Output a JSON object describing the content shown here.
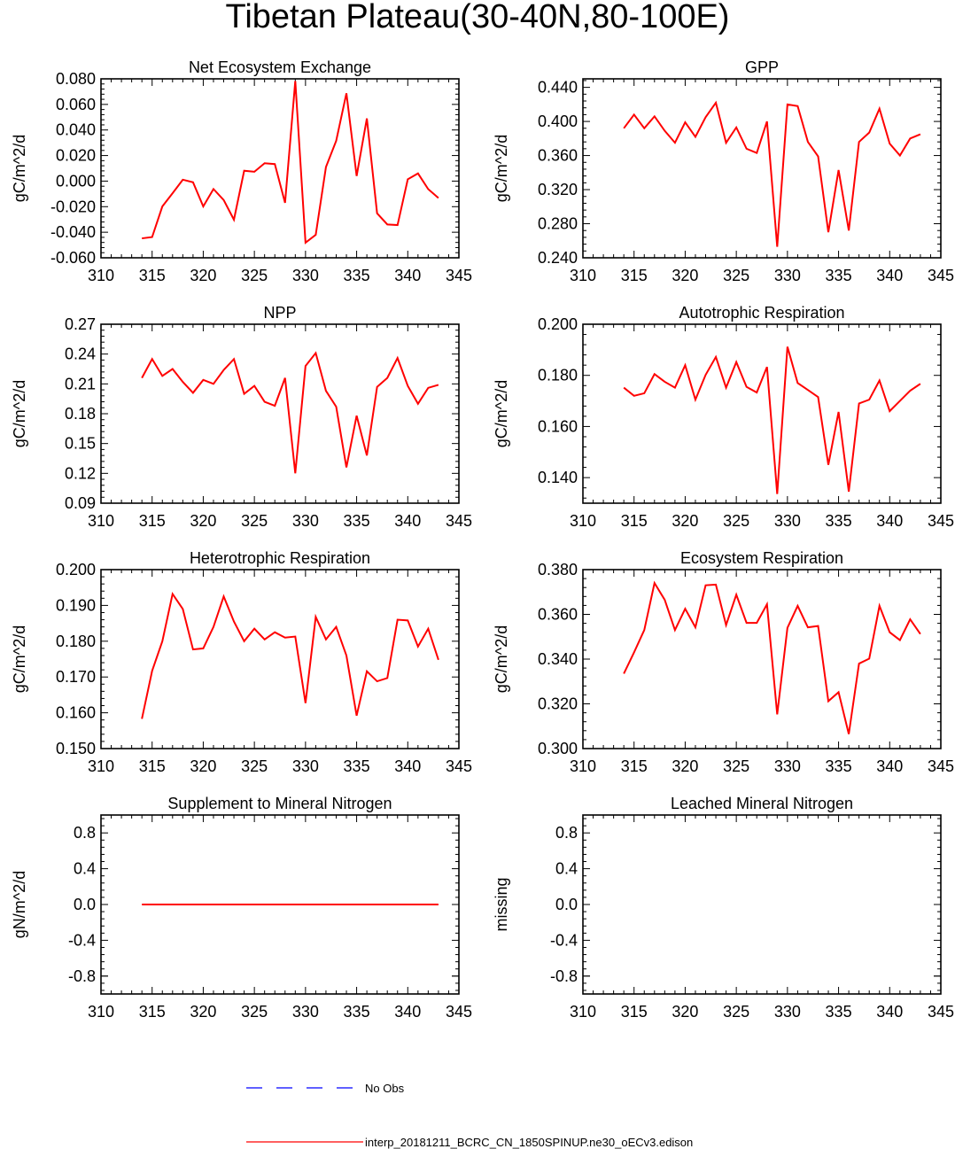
{
  "title": "Tibetan Plateau(30-40N,80-100E)",
  "colors": {
    "model": "#ff0000",
    "obs": "#0000ff",
    "axis": "#000000"
  },
  "legend": {
    "obs_label": "No Obs",
    "model_label": "interp_20181211_BCRC_CN_1850SPINUP.ne30_oECv3.edison"
  },
  "chart_data": [
    {
      "type": "line",
      "title": "Net Ecosystem Exchange",
      "ylabel": "gC/m^2/d",
      "xlim": [
        310,
        345
      ],
      "xticks": [
        310,
        315,
        320,
        325,
        330,
        335,
        340,
        345
      ],
      "ylim": [
        -0.06,
        0.08
      ],
      "yticks": [
        -0.06,
        -0.04,
        -0.02,
        0.0,
        0.02,
        0.04,
        0.06,
        0.08
      ],
      "ydec": 3,
      "x": [
        314,
        315,
        316,
        317,
        318,
        319,
        320,
        321,
        322,
        323,
        324,
        325,
        326,
        327,
        328,
        329,
        330,
        331,
        332,
        333,
        334,
        335,
        336,
        337,
        338,
        339,
        340,
        341,
        342,
        343
      ],
      "series": [
        {
          "name": "model",
          "values": [
            -0.0448,
            -0.0438,
            -0.0198,
            -0.0095,
            0.0011,
            -0.0009,
            -0.0198,
            -0.0062,
            -0.0148,
            -0.0302,
            0.0081,
            0.0073,
            0.014,
            0.0133,
            -0.017,
            0.0783,
            -0.0482,
            -0.042,
            0.011,
            0.0315,
            0.0687,
            0.004,
            0.049,
            -0.0252,
            -0.0339,
            -0.0344,
            0.0014,
            0.006,
            -0.0063,
            -0.0132
          ]
        }
      ]
    },
    {
      "type": "line",
      "title": "GPP",
      "ylabel": "gC/m^2/d",
      "xlim": [
        310,
        345
      ],
      "xticks": [
        310,
        315,
        320,
        325,
        330,
        335,
        340,
        345
      ],
      "ylim": [
        0.24,
        0.45
      ],
      "yticks": [
        0.24,
        0.28,
        0.32,
        0.36,
        0.4,
        0.44
      ],
      "ydec": 3,
      "x": [
        314,
        315,
        316,
        317,
        318,
        319,
        320,
        321,
        322,
        323,
        324,
        325,
        326,
        327,
        328,
        329,
        330,
        331,
        332,
        333,
        334,
        335,
        336,
        337,
        338,
        339,
        340,
        341,
        342,
        343
      ],
      "series": [
        {
          "name": "model",
          "values": [
            0.392,
            0.408,
            0.392,
            0.406,
            0.389,
            0.375,
            0.399,
            0.382,
            0.405,
            0.422,
            0.375,
            0.393,
            0.368,
            0.363,
            0.4,
            0.253,
            0.42,
            0.418,
            0.376,
            0.359,
            0.27,
            0.343,
            0.272,
            0.376,
            0.387,
            0.415,
            0.374,
            0.36,
            0.38,
            0.385
          ]
        }
      ]
    },
    {
      "type": "line",
      "title": "NPP",
      "ylabel": "gC/m^2/d",
      "xlim": [
        310,
        345
      ],
      "xticks": [
        310,
        315,
        320,
        325,
        330,
        335,
        340,
        345
      ],
      "ylim": [
        0.09,
        0.27
      ],
      "yticks": [
        0.09,
        0.12,
        0.15,
        0.18,
        0.21,
        0.24,
        0.27
      ],
      "ydec": 2,
      "x": [
        314,
        315,
        316,
        317,
        318,
        319,
        320,
        321,
        322,
        323,
        324,
        325,
        326,
        327,
        328,
        329,
        330,
        331,
        332,
        333,
        334,
        335,
        336,
        337,
        338,
        339,
        340,
        341,
        342,
        343
      ],
      "series": [
        {
          "name": "model",
          "values": [
            0.216,
            0.235,
            0.218,
            0.225,
            0.212,
            0.201,
            0.214,
            0.21,
            0.224,
            0.235,
            0.2,
            0.208,
            0.192,
            0.188,
            0.216,
            0.12,
            0.228,
            0.241,
            0.203,
            0.187,
            0.126,
            0.178,
            0.138,
            0.207,
            0.216,
            0.236,
            0.208,
            0.19,
            0.206,
            0.209
          ]
        }
      ]
    },
    {
      "type": "line",
      "title": "Autotrophic Respiration",
      "ylabel": "gC/m^2/d",
      "xlim": [
        310,
        345
      ],
      "xticks": [
        310,
        315,
        320,
        325,
        330,
        335,
        340,
        345
      ],
      "ylim": [
        0.13,
        0.2
      ],
      "yticks": [
        0.14,
        0.16,
        0.18,
        0.2
      ],
      "ydec": 3,
      "x": [
        314,
        315,
        316,
        317,
        318,
        319,
        320,
        321,
        322,
        323,
        324,
        325,
        326,
        327,
        328,
        329,
        330,
        331,
        332,
        333,
        334,
        335,
        336,
        337,
        338,
        339,
        340,
        341,
        342,
        343
      ],
      "series": [
        {
          "name": "model",
          "values": [
            0.1752,
            0.172,
            0.173,
            0.1805,
            0.1775,
            0.1752,
            0.184,
            0.1705,
            0.1802,
            0.1872,
            0.1752,
            0.1852,
            0.1755,
            0.1733,
            0.1833,
            0.1336,
            0.1912,
            0.177,
            0.1743,
            0.1715,
            0.145,
            0.1657,
            0.1345,
            0.169,
            0.1705,
            0.178,
            0.166,
            0.17,
            0.174,
            0.1767
          ]
        }
      ]
    },
    {
      "type": "line",
      "title": "Heterotrophic Respiration",
      "ylabel": "gC/m^2/d",
      "xlim": [
        310,
        345
      ],
      "xticks": [
        310,
        315,
        320,
        325,
        330,
        335,
        340,
        345
      ],
      "ylim": [
        0.15,
        0.2
      ],
      "yticks": [
        0.15,
        0.16,
        0.17,
        0.18,
        0.19,
        0.2
      ],
      "ydec": 3,
      "x": [
        314,
        315,
        316,
        317,
        318,
        319,
        320,
        321,
        322,
        323,
        324,
        325,
        326,
        327,
        328,
        329,
        330,
        331,
        332,
        333,
        334,
        335,
        336,
        337,
        338,
        339,
        340,
        341,
        342,
        343
      ],
      "series": [
        {
          "name": "model",
          "values": [
            0.1583,
            0.1717,
            0.18,
            0.1932,
            0.189,
            0.1777,
            0.178,
            0.184,
            0.1925,
            0.1855,
            0.18,
            0.1835,
            0.1805,
            0.1825,
            0.181,
            0.1813,
            0.1627,
            0.1868,
            0.1805,
            0.184,
            0.176,
            0.1592,
            0.1716,
            0.1688,
            0.1697,
            0.186,
            0.1858,
            0.1785,
            0.1835,
            0.1748
          ]
        }
      ]
    },
    {
      "type": "line",
      "title": "Ecosystem Respiration",
      "ylabel": "gC/m^2/d",
      "xlim": [
        310,
        345
      ],
      "xticks": [
        310,
        315,
        320,
        325,
        330,
        335,
        340,
        345
      ],
      "ylim": [
        0.3,
        0.38
      ],
      "yticks": [
        0.3,
        0.32,
        0.34,
        0.36,
        0.38
      ],
      "ydec": 3,
      "x": [
        314,
        315,
        316,
        317,
        318,
        319,
        320,
        321,
        322,
        323,
        324,
        325,
        326,
        327,
        328,
        329,
        330,
        331,
        332,
        333,
        334,
        335,
        336,
        337,
        338,
        339,
        340,
        341,
        342,
        343
      ],
      "series": [
        {
          "name": "model",
          "values": [
            0.3335,
            0.343,
            0.353,
            0.374,
            0.3665,
            0.353,
            0.3625,
            0.3542,
            0.373,
            0.3733,
            0.3552,
            0.3688,
            0.3562,
            0.3562,
            0.3645,
            0.3153,
            0.354,
            0.3638,
            0.3542,
            0.3548,
            0.3212,
            0.3252,
            0.3065,
            0.338,
            0.3402,
            0.3638,
            0.352,
            0.3485,
            0.3578,
            0.3512
          ]
        }
      ]
    },
    {
      "type": "line",
      "title": "Supplement to Mineral Nitrogen",
      "ylabel": "gN/m^2/d",
      "xlim": [
        310,
        345
      ],
      "xticks": [
        310,
        315,
        320,
        325,
        330,
        335,
        340,
        345
      ],
      "ylim": [
        -1.0,
        1.0
      ],
      "yticks": [
        -0.8,
        -0.4,
        0.0,
        0.4,
        0.8
      ],
      "ydec": 1,
      "x": [
        314,
        343
      ],
      "series": [
        {
          "name": "model",
          "values": [
            0.0,
            0.0
          ]
        }
      ]
    },
    {
      "type": "line",
      "title": "Leached Mineral Nitrogen",
      "ylabel": "missing",
      "xlim": [
        310,
        345
      ],
      "xticks": [
        310,
        315,
        320,
        325,
        330,
        335,
        340,
        345
      ],
      "ylim": [
        -1.0,
        1.0
      ],
      "yticks": [
        -0.8,
        -0.4,
        0.0,
        0.4,
        0.8
      ],
      "ydec": 1,
      "x": [],
      "series": []
    }
  ]
}
